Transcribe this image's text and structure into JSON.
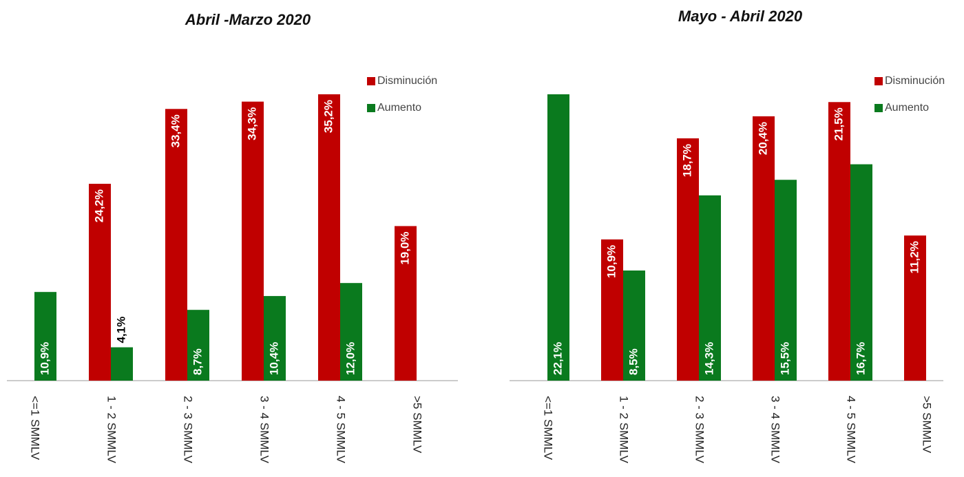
{
  "chart_data": [
    {
      "type": "bar",
      "title": "Abril -Marzo 2020",
      "categories": [
        "<=1 SMMLV",
        "1 - 2 SMMLV",
        "2 - 3 SMMLV",
        "3 - 4 SMMLV",
        "4 - 5 SMMLV",
        ">5 SMMLV"
      ],
      "series": [
        {
          "name": "Disminución",
          "color": "#c00000",
          "values": [
            null,
            24.2,
            33.4,
            34.3,
            35.2,
            19.0
          ],
          "value_labels": [
            null,
            "24,2%",
            "33,4%",
            "34,3%",
            "35,2%",
            "19,0%"
          ]
        },
        {
          "name": "Aumento",
          "color": "#0a7a1e",
          "values": [
            10.9,
            4.1,
            8.7,
            10.4,
            12.0,
            null
          ],
          "value_labels": [
            "10,9%",
            "4,1%",
            "8,7%",
            "10,4%",
            "12,0%",
            null
          ]
        }
      ],
      "legend": "top-right"
    },
    {
      "type": "bar",
      "title": "Mayo - Abril 2020",
      "categories": [
        "<=1 SMMLV",
        "1 - 2 SMMLV",
        "2 - 3 SMMLV",
        "3 - 4 SMMLV",
        "4 - 5 SMMLV",
        ">5 SMMLV"
      ],
      "series": [
        {
          "name": "Disminución",
          "color": "#c00000",
          "values": [
            null,
            10.9,
            18.7,
            20.4,
            21.5,
            11.2
          ],
          "value_labels": [
            null,
            "10,9%",
            "18,7%",
            "20,4%",
            "21,5%",
            "11,2%"
          ]
        },
        {
          "name": "Aumento",
          "color": "#0a7a1e",
          "values": [
            22.1,
            8.5,
            14.3,
            15.5,
            16.7,
            null
          ],
          "value_labels": [
            "22,1%",
            "8,5%",
            "14,3%",
            "15,5%",
            "16,7%",
            null
          ]
        }
      ],
      "legend": "top-right"
    }
  ]
}
